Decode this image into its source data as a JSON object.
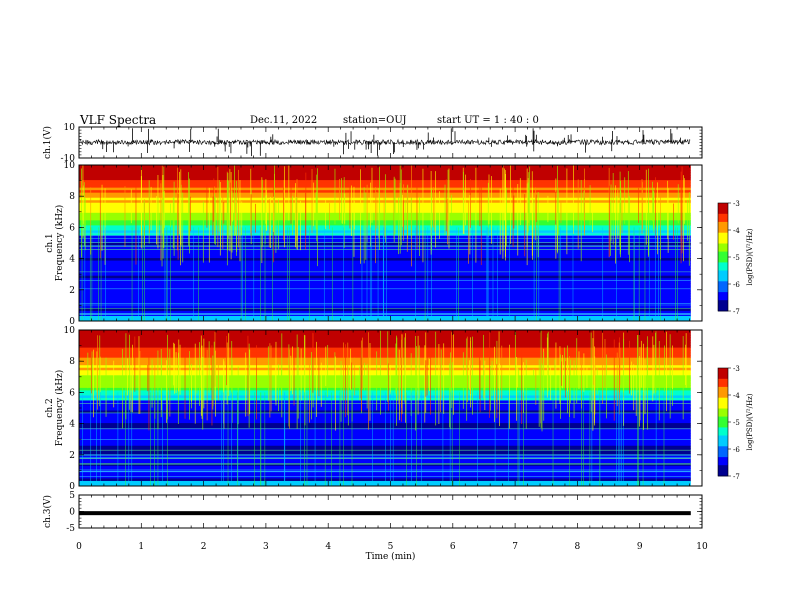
{
  "header": {
    "title": "VLF Spectra",
    "date": "Dec.11, 2022",
    "station": "station=OUJ",
    "start": "start UT =  1 : 40 : 0"
  },
  "colors": {
    "colormap": [
      "#000090",
      "#0000ff",
      "#0066ff",
      "#00ccff",
      "#00ffcc",
      "#33ff33",
      "#99ff00",
      "#ffff00",
      "#ff9900",
      "#ff3300",
      "#c00000"
    ]
  },
  "chart_data": [
    {
      "id": "ch1-waveform",
      "type": "line",
      "ylabel": "ch.1(V)",
      "ylim": [
        -10,
        10
      ],
      "yticks": [
        "10",
        "-10"
      ],
      "xlim": [
        0,
        10
      ],
      "baseline_v": 0.2
    },
    {
      "id": "ch1-spectrogram",
      "type": "heatmap",
      "ylabel": "ch.1 Frequency (kHz)",
      "ylim": [
        0,
        10
      ],
      "yticks": [
        "0",
        "2",
        "4",
        "6",
        "8",
        "10"
      ],
      "xlim": [
        0,
        10
      ],
      "data_end_min": 9.82,
      "colorbar": {
        "label": "log(PSD)(V²/Hz)",
        "range": [
          -7,
          -3
        ],
        "ticks": [
          "-3",
          "-4",
          "-5",
          "-6",
          "-7"
        ]
      }
    },
    {
      "id": "ch2-spectrogram",
      "type": "heatmap",
      "ylabel": "ch.2 Frequency (kHz)",
      "ylim": [
        0,
        10
      ],
      "yticks": [
        "0",
        "2",
        "4",
        "6",
        "8",
        "10"
      ],
      "xlim": [
        0,
        10
      ],
      "data_end_min": 9.82,
      "colorbar": {
        "label": "log(PSD)(V²/Hz)",
        "range": [
          -7,
          -3
        ],
        "ticks": [
          "-3",
          "-4",
          "-5",
          "-6",
          "-7"
        ]
      }
    },
    {
      "id": "ch3-waveform",
      "type": "line",
      "ylabel": "ch.3(V)",
      "ylim": [
        -5,
        5
      ],
      "yticks": [
        "5",
        "0",
        "-5"
      ],
      "xlim": [
        0,
        10
      ],
      "baseline_v": -0.5,
      "xlabel": "Time (min)",
      "xticks": [
        "0",
        "1",
        "2",
        "3",
        "4",
        "5",
        "6",
        "7",
        "8",
        "9",
        "10"
      ]
    }
  ]
}
